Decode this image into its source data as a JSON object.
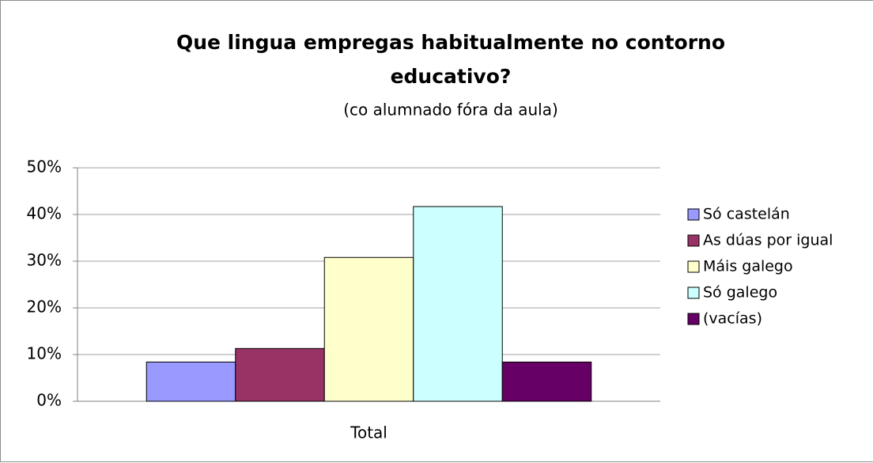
{
  "chart_data": {
    "type": "bar",
    "title": "Que lingua empregas habitualmente no contorno educativo?",
    "subtitle": "(co alumnado fóra da aula)",
    "categories": [
      "Total"
    ],
    "series": [
      {
        "name": "Só castelán",
        "color": "#9999ff",
        "values": [
          8.4
        ]
      },
      {
        "name": "As dúas por igual",
        "color": "#993366",
        "values": [
          11.3
        ]
      },
      {
        "name": "Máis galego",
        "color": "#ffffcc",
        "values": [
          30.8
        ]
      },
      {
        "name": "Só galego",
        "color": "#ccffff",
        "values": [
          41.7
        ]
      },
      {
        "name": "(vacías)",
        "color": "#660066",
        "values": [
          8.4
        ]
      }
    ],
    "ylim": [
      0,
      50
    ],
    "yticks": [
      {
        "value": 0,
        "label": "0%"
      },
      {
        "value": 10,
        "label": "10%"
      },
      {
        "value": 20,
        "label": "20%"
      },
      {
        "value": 30,
        "label": "30%"
      },
      {
        "value": 40,
        "label": "40%"
      },
      {
        "value": 50,
        "label": "50%"
      }
    ],
    "grid": true,
    "legend": "right"
  }
}
